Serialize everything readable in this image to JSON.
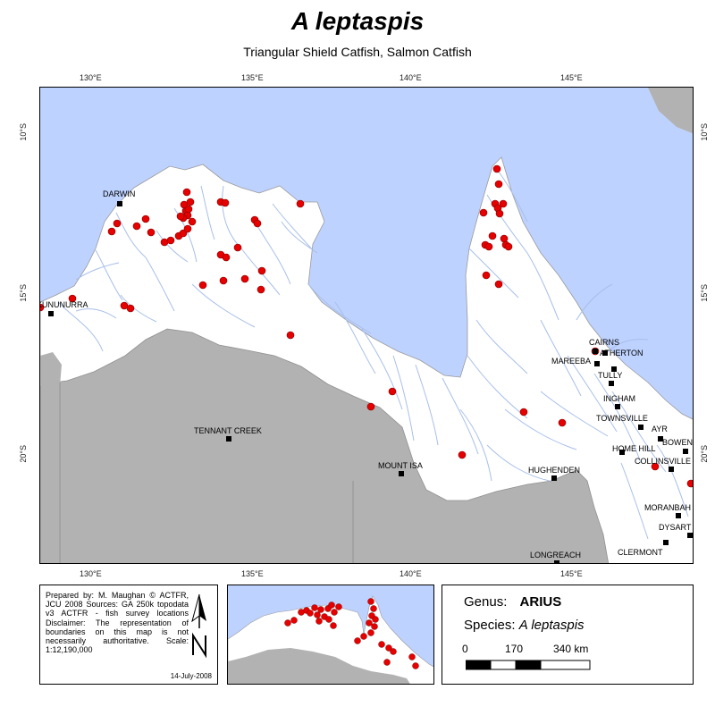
{
  "title": "A leptaspis",
  "subtitle": "Triangular Shield Catfish, Salmon Catfish",
  "lon_ticks": [
    "130°E",
    "135°E",
    "140°E",
    "145°E"
  ],
  "lat_ticks": [
    "10°S",
    "15°S",
    "20°S"
  ],
  "towns": [
    "DARWIN",
    "KUNUNURRA",
    "TENNANT CREEK",
    "MOUNT ISA",
    "CAIRNS",
    "ATHERTON",
    "MAREEBA",
    "TULLY",
    "INGHAM",
    "TOWNSVILLE",
    "AYR",
    "HOME HILL",
    "BOWEN",
    "COLLINSVILLE",
    "HUGHENDEN",
    "MORANBAH",
    "DYSART",
    "CLERMONT",
    "LONGREACH"
  ],
  "credits": {
    "text": "Prepared by: M. Maughan © ACTFR, JCU 2008 Sources: GA 250k topodata v3 ACTFR - fish survey locations Disclaimer: The representation of boundaries on this map is not necessarily authoritative. Scale: 1:12,190,000",
    "date": "14-July-2008"
  },
  "legend": {
    "genus_label": "Genus:",
    "genus": "ARIUS",
    "species_label": "Species:",
    "species": "A leptaspis",
    "scale_labels": [
      "0",
      "170",
      "340 km"
    ]
  },
  "colors": {
    "sea": "#bed2ff",
    "land": "#ffffff",
    "outside": "#b2b2b2",
    "river": "#a8bfe8",
    "record": "#e60000"
  },
  "icons": {
    "north_arrow": "north-arrow-icon",
    "town": "town-square-icon",
    "record": "record-dot-icon"
  }
}
